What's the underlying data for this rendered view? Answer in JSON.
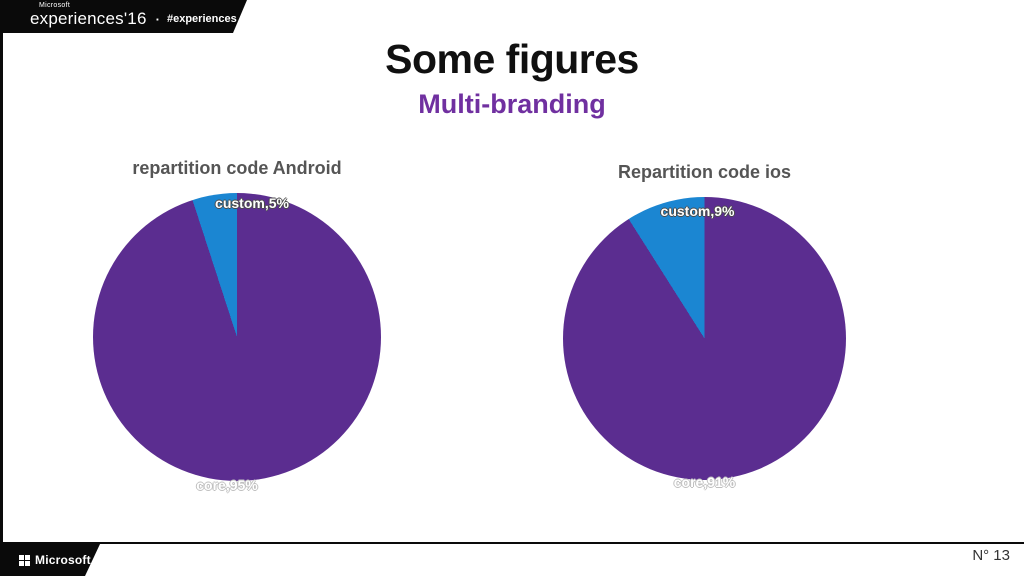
{
  "header": {
    "brand_small": "Microsoft",
    "brand_name": "experiences'16",
    "separator": "·",
    "hashtag": "#experiences"
  },
  "title": "Some figures",
  "subtitle": "Multi-branding",
  "footer": {
    "brand": "Microsoft",
    "page_number": "N° 13"
  },
  "colors": {
    "core_purple": "#5b2d90",
    "custom_blue": "#1b86d2",
    "subtitle_purple": "#7030a0",
    "banner_black": "#0a0a0a",
    "chart_title_gray": "#555555"
  },
  "chart_data": [
    {
      "type": "pie",
      "title": "repartition code Android",
      "start_angle_deg": 0,
      "direction": "clockwise",
      "legend": "none",
      "slices": [
        {
          "label": "core",
          "value": 95,
          "color": "#5b2d90",
          "data_label": "core,95%"
        },
        {
          "label": "custom",
          "value": 5,
          "color": "#1b86d2",
          "data_label": "custom,5%"
        }
      ]
    },
    {
      "type": "pie",
      "title": "Repartition code ios",
      "start_angle_deg": 0,
      "direction": "clockwise",
      "legend": "none",
      "slices": [
        {
          "label": "core",
          "value": 91,
          "color": "#5b2d90",
          "data_label": "core,91%"
        },
        {
          "label": "custom",
          "value": 9,
          "color": "#1b86d2",
          "data_label": "custom,9%"
        }
      ]
    }
  ]
}
